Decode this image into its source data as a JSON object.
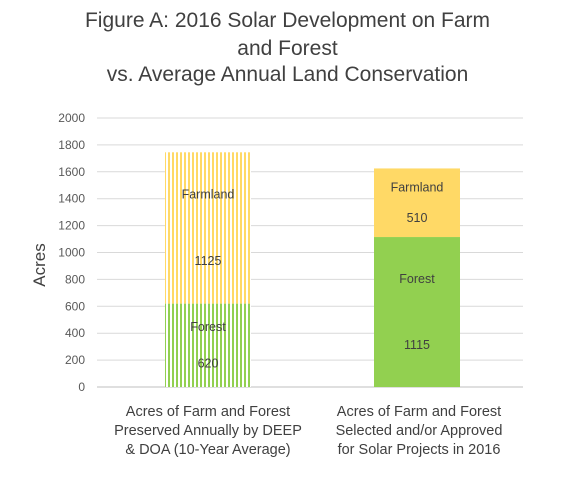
{
  "chart_data": {
    "type": "bar",
    "stacked": true,
    "title_lines": [
      "Figure A: 2016 Solar Development on Farm",
      "and Forest",
      "vs. Average Annual Land Conservation"
    ],
    "ylabel": "Acres",
    "xlabel": "",
    "ylim": [
      0,
      2000
    ],
    "yticks": [
      0,
      200,
      400,
      600,
      800,
      1000,
      1200,
      1400,
      1600,
      1800,
      2000
    ],
    "grid": true,
    "legend": "none",
    "categories": [
      "Acres of Farm and Forest\nPreserved Annually by DEEP\n& DOA (10-Year Average)",
      "Acres of Farm and Forest\nSelected and/or Approved\nfor Solar Projects  in 2016"
    ],
    "series": [
      {
        "name": "Forest",
        "values": [
          620,
          1115
        ],
        "color": "#92d050"
      },
      {
        "name": "Farmland",
        "values": [
          1125,
          510
        ],
        "color": "#ffd966"
      }
    ],
    "bar_styles": [
      "striped",
      "solid"
    ]
  }
}
